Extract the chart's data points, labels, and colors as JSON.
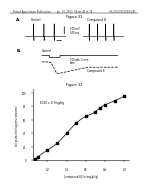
{
  "header_left": "Patent Application Publication",
  "header_mid": "Jun. 13, 2013  Sheet 46 of 74",
  "header_right": "US 2013/0150384 A1",
  "fig31_title": "Figure 31",
  "fig32_title": "Figure 32",
  "panel_a_label": "A.",
  "panel_b_label": "B.",
  "panel_a_left_label": "Control",
  "panel_a_right_label": "Compound 8",
  "panel_a_annotation": "100 mV\n500 ms",
  "panel_b_control": "Control",
  "panel_b_annotation": "100 pA / 2 min\ntime",
  "panel_b_compound": "Compound 8",
  "ec50_label": "EC50 = 0.7mg/kg",
  "ylabel_fig32": "tail protection (against seizures)",
  "xlabel_fig32": "[compound 8] (in mg/g/kg)",
  "scatter_x": [
    0.075,
    0.1,
    0.2,
    0.3,
    0.4,
    0.5,
    0.6,
    0.7,
    0.75,
    0.8,
    0.9,
    1.0
  ],
  "scatter_y": [
    2,
    5,
    15,
    25,
    40,
    55,
    65,
    72,
    78,
    82,
    88,
    95
  ],
  "background": "#ffffff",
  "text_color": "#000000",
  "gray": "#888888"
}
